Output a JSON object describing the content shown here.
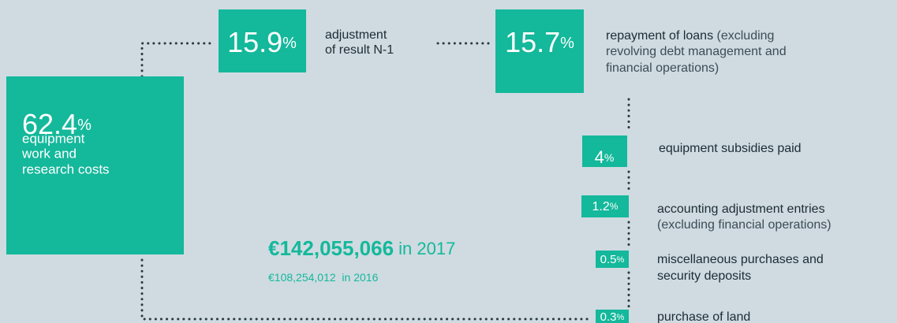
{
  "items": [
    {
      "value": "62.4",
      "unit": "%",
      "label": [
        "equipment",
        "work and",
        "research costs"
      ]
    },
    {
      "value": "15.9",
      "unit": "%",
      "label": [
        "adjustment",
        "of result N-1"
      ]
    },
    {
      "value": "15.7",
      "unit": "%",
      "label": [
        "repayment of loans"
      ],
      "note": [
        " (excluding",
        "revolving debt management and",
        "financial operations)"
      ]
    },
    {
      "value": "4",
      "unit": "%",
      "label": [
        "equipment subsidies paid"
      ]
    },
    {
      "value": "1.2",
      "unit": "%",
      "label": [
        "accounting adjustment entries"
      ],
      "note": [
        "(excluding financial operations)"
      ]
    },
    {
      "value": "0.5",
      "unit": "%",
      "label": [
        "miscellaneous purchases and",
        "security deposits"
      ]
    },
    {
      "value": "0.3",
      "unit": "%",
      "label": [
        "purchase of land"
      ]
    }
  ],
  "total": {
    "amount": "€142,055,066",
    "year": " in 2017"
  },
  "previous": {
    "amount": "€108,254,012",
    "year": "  in 2016"
  }
}
